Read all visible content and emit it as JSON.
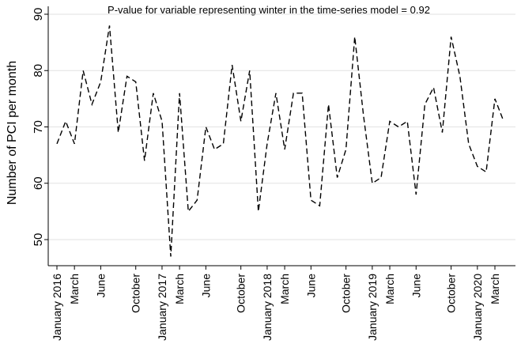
{
  "chart_data": {
    "type": "line",
    "title": "P-value for variable representing winter in the time-series model = 0.92",
    "xlabel": "",
    "ylabel": "Number of PCI per month",
    "ylim": [
      45,
      92
    ],
    "yticks": [
      50,
      60,
      70,
      80,
      90
    ],
    "grid": true,
    "line_style": "dashed",
    "line_color": "#000000",
    "x_tick_labels": [
      {
        "index": 0,
        "label": "January 2016"
      },
      {
        "index": 2,
        "label": "March"
      },
      {
        "index": 5,
        "label": "June"
      },
      {
        "index": 9,
        "label": "October"
      },
      {
        "index": 12,
        "label": "January 2017"
      },
      {
        "index": 14,
        "label": "March"
      },
      {
        "index": 17,
        "label": "June"
      },
      {
        "index": 21,
        "label": "October"
      },
      {
        "index": 24,
        "label": "January 2018"
      },
      {
        "index": 26,
        "label": "March"
      },
      {
        "index": 29,
        "label": "June"
      },
      {
        "index": 33,
        "label": "October"
      },
      {
        "index": 36,
        "label": "January 2019"
      },
      {
        "index": 38,
        "label": "March"
      },
      {
        "index": 41,
        "label": "June"
      },
      {
        "index": 45,
        "label": "October"
      },
      {
        "index": 48,
        "label": "January 2020"
      },
      {
        "index": 50,
        "label": "March"
      }
    ],
    "x": [
      "2016-01",
      "2016-02",
      "2016-03",
      "2016-04",
      "2016-05",
      "2016-06",
      "2016-07",
      "2016-08",
      "2016-09",
      "2016-10",
      "2016-11",
      "2016-12",
      "2017-01",
      "2017-02",
      "2017-03",
      "2017-04",
      "2017-05",
      "2017-06",
      "2017-07",
      "2017-08",
      "2017-09",
      "2017-10",
      "2017-11",
      "2017-12",
      "2018-01",
      "2018-02",
      "2018-03",
      "2018-04",
      "2018-05",
      "2018-06",
      "2018-07",
      "2018-08",
      "2018-09",
      "2018-10",
      "2018-11",
      "2018-12",
      "2019-01",
      "2019-02",
      "2019-03",
      "2019-04",
      "2019-05",
      "2019-06",
      "2019-07",
      "2019-08",
      "2019-09",
      "2019-10",
      "2019-11",
      "2019-12",
      "2020-01",
      "2020-02",
      "2020-03",
      "2020-04"
    ],
    "values": [
      67,
      71,
      67,
      80,
      74,
      78,
      88,
      69,
      79,
      78,
      64,
      76,
      71,
      47,
      76,
      55,
      57,
      70,
      66,
      67,
      81,
      71,
      80,
      55,
      67,
      76,
      66,
      76,
      76,
      57,
      56,
      74,
      61,
      66,
      86,
      72,
      60,
      61,
      71,
      70,
      71,
      58,
      74,
      77,
      69,
      86,
      79,
      67,
      63,
      62,
      75,
      71
    ]
  }
}
